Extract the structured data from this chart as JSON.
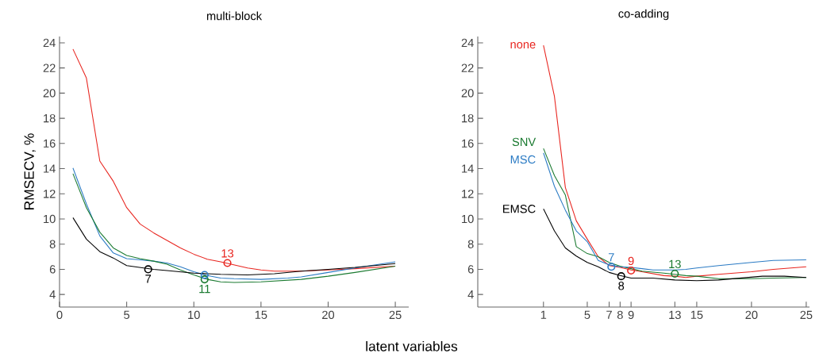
{
  "chart_data": [
    {
      "type": "line",
      "title": "multi-block",
      "xlabel": "latent variables",
      "ylabel": "RMSECV, %",
      "marker": "none",
      "line_style": "solid",
      "xlim": [
        0,
        26
      ],
      "ylim": [
        3,
        24.5
      ],
      "xticks": [
        0,
        5,
        10,
        15,
        20,
        25
      ],
      "yticks": [
        4,
        6,
        8,
        10,
        12,
        14,
        16,
        18,
        20,
        22,
        24
      ],
      "series": [
        {
          "color": "#e8251f",
          "x": [
            1,
            2,
            3,
            4,
            5,
            6,
            7,
            8,
            9,
            10,
            11,
            12,
            14,
            15,
            16,
            18,
            20,
            22,
            25
          ],
          "values": [
            23.5,
            21.2,
            14.6,
            13.0,
            10.9,
            9.6,
            8.9,
            8.3,
            7.7,
            7.2,
            6.8,
            6.6,
            6.1,
            5.95,
            5.85,
            5.85,
            5.95,
            6.05,
            6.25
          ]
        },
        {
          "color": "#2b7bc4",
          "x": [
            1,
            2,
            3,
            4,
            5,
            6,
            7,
            8,
            9,
            10,
            11,
            12,
            13,
            15,
            17,
            18,
            20,
            22,
            25
          ],
          "values": [
            14.05,
            11.2,
            8.65,
            7.3,
            6.85,
            6.75,
            6.65,
            6.5,
            6.2,
            5.8,
            5.5,
            5.3,
            5.25,
            5.2,
            5.3,
            5.4,
            5.75,
            6.1,
            6.6
          ]
        },
        {
          "color": "#1a7a30",
          "x": [
            1,
            2,
            3,
            4,
            5,
            6,
            7,
            8,
            9,
            10,
            11,
            12,
            13,
            15,
            18,
            20,
            22,
            25
          ],
          "values": [
            13.6,
            10.9,
            8.95,
            7.7,
            7.1,
            6.85,
            6.65,
            6.4,
            5.95,
            5.55,
            5.2,
            5.0,
            4.95,
            5.0,
            5.2,
            5.45,
            5.75,
            6.25
          ]
        },
        {
          "color": "#000000",
          "x": [
            1,
            2,
            3,
            4,
            5,
            6,
            7,
            8,
            9,
            10,
            11,
            12,
            14,
            16,
            18,
            20,
            22,
            25
          ],
          "values": [
            10.1,
            8.4,
            7.4,
            6.9,
            6.3,
            6.15,
            6.0,
            5.9,
            5.8,
            5.7,
            5.65,
            5.6,
            5.55,
            5.65,
            5.85,
            6.0,
            6.15,
            6.45
          ]
        },
        {
          "type": "scatter",
          "marker": "circle",
          "x": [
            6.6,
            10.8,
            12.5,
            10.8
          ],
          "values": [
            6.0,
            5.2,
            6.5,
            5.55
          ],
          "colors": [
            "#000000",
            "#1a7a30",
            "#e8251f",
            "#2b7bc4"
          ]
        }
      ],
      "annotations": [
        {
          "text": "7",
          "x": 6.6,
          "y": 6.0
        },
        {
          "text": "11",
          "x": 10.8,
          "y": 5.2
        },
        {
          "text": "13",
          "x": 12.5,
          "y": 6.5
        }
      ]
    },
    {
      "type": "line",
      "title": "co-adding",
      "marker": "none",
      "line_style": "solid",
      "xlim": [
        -5,
        25.3
      ],
      "ylim": [
        3,
        24.5
      ],
      "xticks": [
        1,
        5,
        7,
        8,
        9,
        13,
        15,
        20,
        25
      ],
      "yticks": [
        4,
        6,
        8,
        10,
        12,
        14,
        16,
        18,
        20,
        22,
        24
      ],
      "series": [
        {
          "name": "none",
          "color": "#e8251f",
          "x": [
            1,
            2,
            3,
            4,
            5,
            6,
            7,
            8,
            9,
            10,
            11,
            12,
            13,
            14,
            15,
            17,
            20,
            22,
            25
          ],
          "values": [
            23.8,
            19.75,
            12.5,
            9.85,
            8.4,
            7.0,
            6.3,
            6.15,
            5.95,
            5.8,
            5.65,
            5.5,
            5.45,
            5.35,
            5.45,
            5.6,
            5.8,
            6.0,
            6.2
          ]
        },
        {
          "name": "SNV",
          "color": "#1a7a30",
          "x": [
            1,
            2,
            3,
            4,
            5,
            6,
            7,
            8,
            9,
            10,
            12,
            13,
            14,
            15,
            17,
            20,
            22,
            25
          ],
          "values": [
            15.6,
            13.45,
            11.9,
            7.8,
            7.25,
            7.0,
            6.55,
            6.25,
            6.05,
            5.85,
            5.7,
            5.6,
            5.5,
            5.45,
            5.25,
            5.25,
            5.3,
            5.35
          ]
        },
        {
          "name": "MSC",
          "color": "#2b7bc4",
          "x": [
            1,
            2,
            3,
            4,
            5,
            6,
            7,
            8,
            9,
            10,
            11,
            13,
            14,
            15,
            17,
            20,
            22,
            25
          ],
          "values": [
            15.25,
            12.6,
            10.7,
            9.05,
            8.2,
            6.7,
            6.35,
            6.2,
            6.15,
            6.05,
            5.95,
            5.95,
            6.0,
            6.1,
            6.3,
            6.55,
            6.7,
            6.75
          ]
        },
        {
          "name": "EMSC",
          "color": "#000000",
          "x": [
            1,
            2,
            3,
            4,
            5,
            6,
            7,
            8,
            9,
            11,
            13,
            15,
            17,
            19,
            21,
            23,
            25
          ],
          "values": [
            10.8,
            9.05,
            7.7,
            7.05,
            6.55,
            6.2,
            5.75,
            5.5,
            5.3,
            5.3,
            5.15,
            5.1,
            5.15,
            5.3,
            5.45,
            5.45,
            5.35
          ]
        },
        {
          "type": "scatter",
          "marker": "circle",
          "x": [
            7.2,
            9,
            13,
            8.1
          ],
          "values": [
            6.2,
            5.9,
            5.65,
            5.45
          ],
          "colors": [
            "#2b7bc4",
            "#e8251f",
            "#1a7a30",
            "#000000"
          ]
        }
      ],
      "annotations": [
        {
          "text": "7",
          "x": 7.2,
          "y": 6.2
        },
        {
          "text": "9",
          "x": 9,
          "y": 5.9
        },
        {
          "text": "13",
          "x": 13,
          "y": 5.65
        },
        {
          "text": "8",
          "x": 8.1,
          "y": 5.45
        }
      ]
    }
  ]
}
